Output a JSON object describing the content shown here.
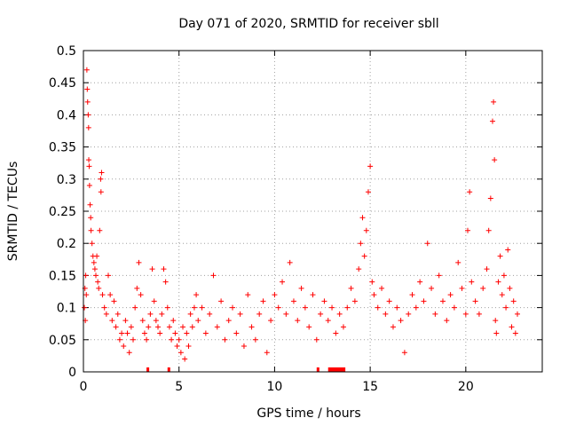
{
  "chart_data": {
    "type": "scatter",
    "title": "Day 071 of 2020, SRMTID for receiver sbll",
    "xlabel": "GPS time / hours",
    "ylabel": "SRMTID / TECUs",
    "xlim": [
      0,
      24
    ],
    "ylim": [
      0,
      0.5
    ],
    "xticks": [
      0,
      5,
      10,
      15,
      20
    ],
    "xtick_labels": [
      "0",
      "5",
      "10",
      "15",
      "20"
    ],
    "yticks": [
      0,
      0.05,
      0.1,
      0.15,
      0.2,
      0.25,
      0.3,
      0.35,
      0.4,
      0.45,
      0.5
    ],
    "ytick_labels": [
      "0",
      "0.05",
      "0.1",
      "0.15",
      "0.2",
      "0.25",
      "0.3",
      "0.35",
      "0.4",
      "0.45",
      "0.5"
    ],
    "grid": true,
    "marker": "+",
    "color": "#ff0000",
    "series": [
      {
        "name": "SRMTID",
        "points": [
          [
            0.05,
            0.1
          ],
          [
            0.08,
            0.13
          ],
          [
            0.1,
            0.08
          ],
          [
            0.12,
            0.15
          ],
          [
            0.15,
            0.12
          ],
          [
            0.18,
            0.47
          ],
          [
            0.2,
            0.44
          ],
          [
            0.22,
            0.42
          ],
          [
            0.25,
            0.4
          ],
          [
            0.27,
            0.38
          ],
          [
            0.28,
            0.33
          ],
          [
            0.3,
            0.32
          ],
          [
            0.32,
            0.29
          ],
          [
            0.35,
            0.26
          ],
          [
            0.38,
            0.24
          ],
          [
            0.4,
            0.22
          ],
          [
            0.45,
            0.2
          ],
          [
            0.5,
            0.18
          ],
          [
            0.55,
            0.17
          ],
          [
            0.6,
            0.16
          ],
          [
            0.65,
            0.15
          ],
          [
            0.7,
            0.18
          ],
          [
            0.75,
            0.14
          ],
          [
            0.8,
            0.13
          ],
          [
            0.85,
            0.22
          ],
          [
            0.9,
            0.3
          ],
          [
            0.92,
            0.28
          ],
          [
            0.95,
            0.31
          ],
          [
            1.0,
            0.12
          ],
          [
            1.1,
            0.1
          ],
          [
            1.2,
            0.09
          ],
          [
            1.3,
            0.15
          ],
          [
            1.4,
            0.12
          ],
          [
            1.5,
            0.08
          ],
          [
            1.6,
            0.11
          ],
          [
            1.7,
            0.07
          ],
          [
            1.8,
            0.09
          ],
          [
            1.9,
            0.05
          ],
          [
            2.0,
            0.06
          ],
          [
            2.1,
            0.04
          ],
          [
            2.2,
            0.08
          ],
          [
            2.3,
            0.06
          ],
          [
            2.4,
            0.03
          ],
          [
            2.5,
            0.07
          ],
          [
            2.6,
            0.05
          ],
          [
            2.7,
            0.1
          ],
          [
            2.8,
            0.13
          ],
          [
            2.9,
            0.17
          ],
          [
            3.0,
            0.12
          ],
          [
            3.1,
            0.08
          ],
          [
            3.2,
            0.06
          ],
          [
            3.3,
            0.05
          ],
          [
            3.4,
            0.07
          ],
          [
            3.5,
            0.09
          ],
          [
            3.6,
            0.16
          ],
          [
            3.7,
            0.11
          ],
          [
            3.8,
            0.08
          ],
          [
            3.9,
            0.07
          ],
          [
            4.0,
            0.06
          ],
          [
            4.1,
            0.09
          ],
          [
            4.2,
            0.16
          ],
          [
            4.3,
            0.14
          ],
          [
            4.4,
            0.1
          ],
          [
            4.5,
            0.07
          ],
          [
            4.6,
            0.05
          ],
          [
            4.7,
            0.08
          ],
          [
            4.8,
            0.06
          ],
          [
            4.9,
            0.04
          ],
          [
            5.0,
            0.05
          ],
          [
            5.1,
            0.03
          ],
          [
            5.2,
            0.07
          ],
          [
            5.3,
            0.02
          ],
          [
            5.4,
            0.06
          ],
          [
            5.5,
            0.04
          ],
          [
            5.6,
            0.09
          ],
          [
            5.7,
            0.07
          ],
          [
            5.8,
            0.1
          ],
          [
            5.9,
            0.12
          ],
          [
            6.0,
            0.08
          ],
          [
            6.2,
            0.1
          ],
          [
            6.4,
            0.06
          ],
          [
            6.6,
            0.09
          ],
          [
            6.8,
            0.15
          ],
          [
            7.0,
            0.07
          ],
          [
            7.2,
            0.11
          ],
          [
            7.4,
            0.05
          ],
          [
            7.6,
            0.08
          ],
          [
            7.8,
            0.1
          ],
          [
            8.0,
            0.06
          ],
          [
            8.2,
            0.09
          ],
          [
            8.4,
            0.04
          ],
          [
            8.6,
            0.12
          ],
          [
            8.8,
            0.07
          ],
          [
            9.0,
            0.05
          ],
          [
            9.2,
            0.09
          ],
          [
            9.4,
            0.11
          ],
          [
            9.6,
            0.03
          ],
          [
            9.8,
            0.08
          ],
          [
            10.0,
            0.12
          ],
          [
            10.2,
            0.1
          ],
          [
            10.4,
            0.14
          ],
          [
            10.6,
            0.09
          ],
          [
            10.8,
            0.17
          ],
          [
            11.0,
            0.11
          ],
          [
            11.2,
            0.08
          ],
          [
            11.4,
            0.13
          ],
          [
            11.6,
            0.1
          ],
          [
            11.8,
            0.07
          ],
          [
            12.0,
            0.12
          ],
          [
            12.2,
            0.05
          ],
          [
            12.4,
            0.09
          ],
          [
            12.6,
            0.11
          ],
          [
            12.8,
            0.08
          ],
          [
            13.0,
            0.1
          ],
          [
            13.2,
            0.06
          ],
          [
            13.4,
            0.09
          ],
          [
            13.6,
            0.07
          ],
          [
            13.8,
            0.1
          ],
          [
            14.0,
            0.13
          ],
          [
            14.2,
            0.11
          ],
          [
            14.4,
            0.16
          ],
          [
            14.5,
            0.2
          ],
          [
            14.6,
            0.24
          ],
          [
            14.7,
            0.18
          ],
          [
            14.8,
            0.22
          ],
          [
            14.9,
            0.28
          ],
          [
            15.0,
            0.32
          ],
          [
            15.1,
            0.14
          ],
          [
            15.2,
            0.12
          ],
          [
            15.4,
            0.1
          ],
          [
            15.6,
            0.13
          ],
          [
            15.8,
            0.09
          ],
          [
            16.0,
            0.11
          ],
          [
            16.2,
            0.07
          ],
          [
            16.4,
            0.1
          ],
          [
            16.6,
            0.08
          ],
          [
            16.8,
            0.03
          ],
          [
            17.0,
            0.09
          ],
          [
            17.2,
            0.12
          ],
          [
            17.4,
            0.1
          ],
          [
            17.6,
            0.14
          ],
          [
            17.8,
            0.11
          ],
          [
            18.0,
            0.2
          ],
          [
            18.2,
            0.13
          ],
          [
            18.4,
            0.09
          ],
          [
            18.6,
            0.15
          ],
          [
            18.8,
            0.11
          ],
          [
            19.0,
            0.08
          ],
          [
            19.2,
            0.12
          ],
          [
            19.4,
            0.1
          ],
          [
            19.6,
            0.17
          ],
          [
            19.8,
            0.13
          ],
          [
            20.0,
            0.09
          ],
          [
            20.1,
            0.22
          ],
          [
            20.2,
            0.28
          ],
          [
            20.3,
            0.14
          ],
          [
            20.5,
            0.11
          ],
          [
            20.7,
            0.09
          ],
          [
            20.9,
            0.13
          ],
          [
            21.1,
            0.16
          ],
          [
            21.2,
            0.22
          ],
          [
            21.3,
            0.27
          ],
          [
            21.4,
            0.39
          ],
          [
            21.45,
            0.42
          ],
          [
            21.5,
            0.33
          ],
          [
            21.55,
            0.08
          ],
          [
            21.6,
            0.06
          ],
          [
            21.7,
            0.14
          ],
          [
            21.8,
            0.18
          ],
          [
            21.9,
            0.12
          ],
          [
            22.0,
            0.15
          ],
          [
            22.1,
            0.1
          ],
          [
            22.2,
            0.19
          ],
          [
            22.3,
            0.13
          ],
          [
            22.4,
            0.07
          ],
          [
            22.5,
            0.11
          ],
          [
            22.6,
            0.06
          ],
          [
            22.7,
            0.09
          ]
        ]
      }
    ],
    "gap_markers": [
      [
        3.3,
        3.4
      ],
      [
        4.4,
        4.5
      ],
      [
        12.2,
        12.3
      ],
      [
        12.8,
        13.7
      ]
    ]
  }
}
